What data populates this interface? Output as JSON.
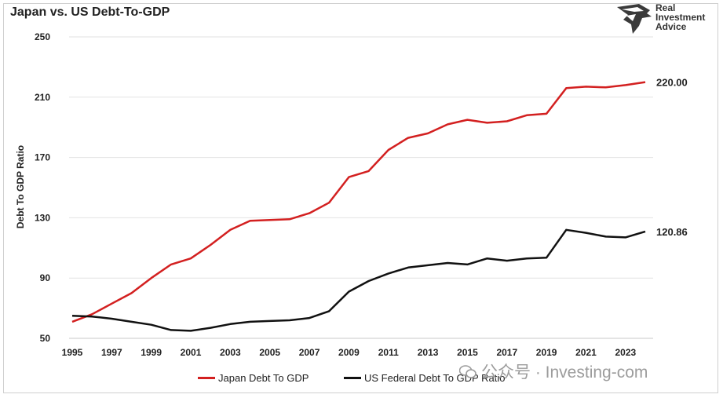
{
  "title": "Japan vs. US Debt-To-GDP",
  "logo": {
    "line1": "Real",
    "line2": "Investment",
    "line3": "Advice",
    "icon": "eagle-head-icon"
  },
  "watermark": {
    "text": "公众号 · Investing-com",
    "icon": "wechat-icon"
  },
  "chart_data": {
    "type": "line",
    "title": "Japan vs. US Debt-To-GDP",
    "xlabel": "",
    "ylabel": "Debt To GDP Ratio",
    "ylim": [
      50,
      250
    ],
    "yticks": [
      50,
      90,
      130,
      170,
      210,
      250
    ],
    "x": [
      1995,
      1996,
      1997,
      1998,
      1999,
      2000,
      2001,
      2002,
      2003,
      2004,
      2005,
      2006,
      2007,
      2008,
      2009,
      2010,
      2011,
      2012,
      2013,
      2014,
      2015,
      2016,
      2017,
      2018,
      2019,
      2020,
      2021,
      2022,
      2023,
      2024
    ],
    "xtick_labels": [
      "1995",
      "1997",
      "1999",
      "2001",
      "2003",
      "2005",
      "2007",
      "2009",
      "2011",
      "2013",
      "2015",
      "2017",
      "2019",
      "2021",
      "2023"
    ],
    "grid": "horizontal",
    "legend_position": "bottom",
    "series": [
      {
        "name": "Japan Debt To GDP",
        "color": "#d32020",
        "values": [
          61,
          66,
          73,
          80,
          90,
          99,
          103,
          112,
          122,
          128,
          128.5,
          129,
          133,
          140,
          157,
          161,
          175,
          183,
          186,
          192,
          195,
          193,
          194,
          198,
          199,
          216,
          217,
          216.5,
          218,
          220
        ],
        "end_label": "220.00"
      },
      {
        "name": "US Federal Debt To GDP Ratio",
        "color": "#111111",
        "values": [
          65,
          64.5,
          63,
          61,
          59,
          55.5,
          55,
          57,
          59.5,
          61,
          61.5,
          62,
          63.5,
          68,
          81,
          88,
          93,
          97,
          98.5,
          100,
          99,
          103,
          101.5,
          103,
          103.5,
          122,
          120,
          117.5,
          117,
          120.86
        ],
        "end_label": "120.86"
      }
    ]
  }
}
